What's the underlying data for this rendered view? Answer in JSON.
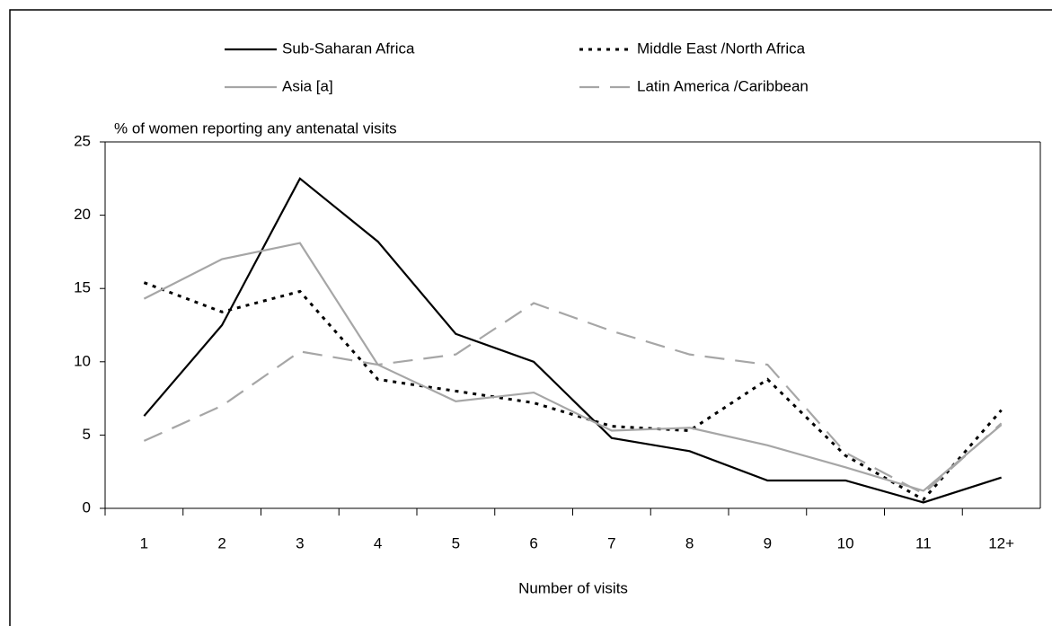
{
  "chart_data": {
    "type": "line",
    "y_label": "% of women reporting any antenatal visits",
    "x_label": "Number of visits",
    "categories": [
      "1",
      "2",
      "3",
      "4",
      "5",
      "6",
      "7",
      "8",
      "9",
      "10",
      "11",
      "12+"
    ],
    "series": [
      {
        "name": "Sub-Saharan Africa",
        "color": "#000000",
        "dash": "solid",
        "values": [
          6.3,
          12.5,
          22.5,
          18.2,
          11.9,
          10.0,
          4.8,
          3.9,
          1.9,
          1.9,
          0.4,
          2.1
        ]
      },
      {
        "name": "Middle East /North Africa",
        "color": "#000000",
        "dash": "dotted",
        "values": [
          15.4,
          13.4,
          14.8,
          8.8,
          8.0,
          7.2,
          5.6,
          5.3,
          8.8,
          3.6,
          0.6,
          6.7
        ]
      },
      {
        "name": "Asia [a]",
        "color": "#a6a6a6",
        "dash": "solid",
        "values": [
          14.3,
          17.0,
          18.1,
          9.8,
          7.3,
          7.9,
          5.3,
          5.5,
          4.3,
          2.8,
          1.2,
          5.7
        ]
      },
      {
        "name": "Latin America /Caribbean",
        "color": "#a6a6a6",
        "dash": "dashed",
        "values": [
          4.6,
          7.0,
          10.7,
          9.8,
          10.5,
          14.0,
          12.1,
          10.5,
          9.8,
          3.8,
          1.0,
          5.8
        ]
      }
    ],
    "ylim": [
      0,
      25
    ],
    "yticks": [
      0,
      5,
      10,
      15,
      20,
      25
    ],
    "grid": false
  }
}
